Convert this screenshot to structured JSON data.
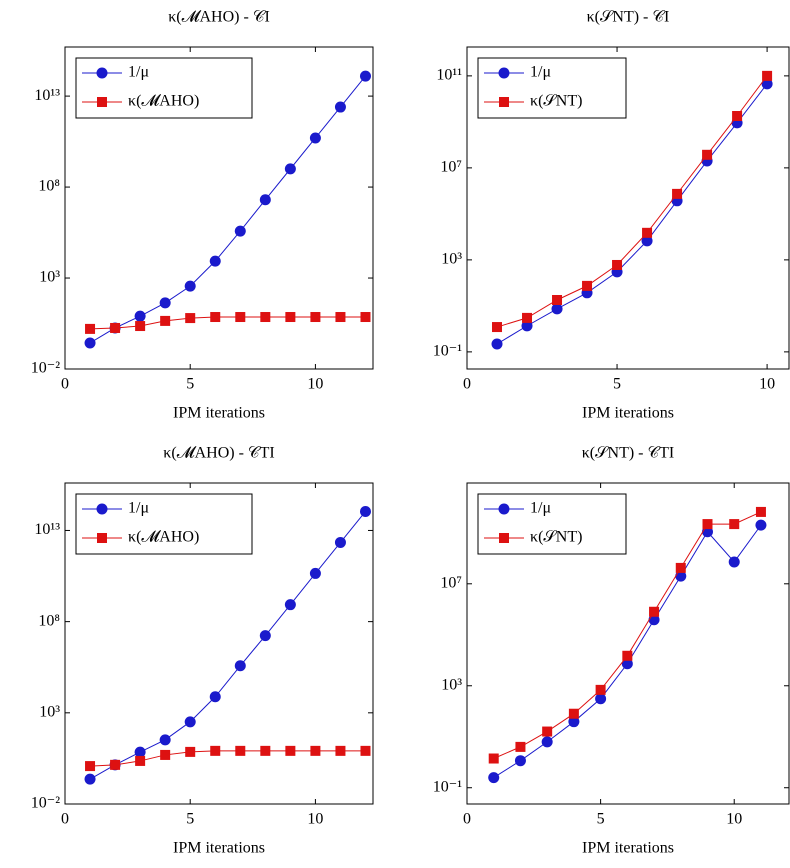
{
  "chart_data": [
    {
      "type": "line",
      "title": "κ(𝓜AHO) - 𝒞I",
      "xlabel": "IPM iterations",
      "log_y": true,
      "legend": "upper left",
      "xlim": [
        0,
        12.3
      ],
      "xticks": [
        0,
        5,
        10
      ],
      "ylim": [
        0.01,
        5000000000000000.0
      ],
      "yticks": [
        {
          "value": 0.01,
          "label": "10⁻²"
        },
        {
          "value": 1000,
          "label": "10³"
        },
        {
          "value": 100000000,
          "label": "10⁸"
        },
        {
          "value": 10000000000000.0,
          "label": "10¹³"
        }
      ],
      "x": [
        1,
        2,
        3,
        4,
        5,
        6,
        7,
        8,
        9,
        10,
        11,
        12
      ],
      "series": [
        {
          "name": "1/μ",
          "color": "#1a1acc",
          "marker": "circle",
          "values": [
            0.27,
            1.8,
            8,
            43,
            360,
            8500,
            380000,
            20000000,
            1000000000,
            50000000000,
            2500000000000,
            126000000000000
          ]
        },
        {
          "name": "κ(𝓜AHO)",
          "color": "#dd1111",
          "marker": "square",
          "values": [
            1.6,
            1.8,
            2.3,
            4.4,
            6.3,
            7.2,
            7.2,
            7.2,
            7.2,
            7.2,
            7.2,
            7.2
          ]
        }
      ]
    },
    {
      "type": "line",
      "title": "κ(𝒮NT) - 𝒞I",
      "xlabel": "IPM iterations",
      "log_y": true,
      "legend": "upper left",
      "xlim": [
        0,
        10.73
      ],
      "xticks": [
        0,
        5,
        10
      ],
      "ylim": [
        0.018,
        1800000000000.0
      ],
      "yticks": [
        {
          "value": 0.1,
          "label": "10⁻¹"
        },
        {
          "value": 1000,
          "label": "10³"
        },
        {
          "value": 10000000,
          "label": "10⁷"
        },
        {
          "value": 100000000000,
          "label": "10¹¹"
        }
      ],
      "x": [
        1,
        2,
        3,
        4,
        5,
        6,
        7,
        8,
        9,
        10
      ],
      "series": [
        {
          "name": "1/μ",
          "color": "#1a1acc",
          "marker": "circle",
          "values": [
            0.22,
            1.35,
            7.4,
            37,
            300,
            6700,
            370000,
            20000000,
            900000000,
            45000000000
          ]
        },
        {
          "name": "κ(𝒮NT)",
          "color": "#dd1111",
          "marker": "square",
          "values": [
            1.2,
            3,
            18,
            74,
            600,
            15000,
            740000,
            37000000,
            1800000000,
            100000000000
          ]
        }
      ]
    },
    {
      "type": "line",
      "title": "κ(𝓜AHO) - 𝒞TI",
      "xlabel": "IPM iterations",
      "log_y": true,
      "legend": "upper left",
      "xlim": [
        0,
        12.3
      ],
      "xticks": [
        0,
        5,
        10
      ],
      "ylim": [
        0.01,
        4000000000000000.0
      ],
      "yticks": [
        {
          "value": 0.01,
          "label": "10⁻²"
        },
        {
          "value": 1000,
          "label": "10³"
        },
        {
          "value": 100000000,
          "label": "10⁸"
        },
        {
          "value": 10000000000000.0,
          "label": "10¹³"
        }
      ],
      "x": [
        1,
        2,
        3,
        4,
        5,
        6,
        7,
        8,
        9,
        10,
        11,
        12
      ],
      "series": [
        {
          "name": "1/μ",
          "color": "#1a1acc",
          "marker": "circle",
          "values": [
            0.23,
            1.4,
            7,
            33,
            320,
            7600,
            380000,
            17000000,
            850000000,
            44000000000,
            2200000000000,
            110000000000000
          ]
        },
        {
          "name": "κ(𝓜AHO)",
          "color": "#dd1111",
          "marker": "square",
          "values": [
            1.2,
            1.4,
            2.3,
            4.9,
            7.2,
            8.2,
            8.2,
            8.2,
            8.2,
            8.2,
            8.2,
            8.2
          ]
        }
      ]
    },
    {
      "type": "line",
      "title": "κ(𝒮NT) - 𝒞TI",
      "xlabel": "IPM iterations",
      "log_y": true,
      "legend": "upper left",
      "xlim": [
        0,
        12.05
      ],
      "xticks": [
        0,
        5,
        10
      ],
      "ylim": [
        0.023,
        90000000000.0
      ],
      "yticks": [
        {
          "value": 0.1,
          "label": "10⁻¹"
        },
        {
          "value": 1000,
          "label": "10³"
        },
        {
          "value": 10000000,
          "label": "10⁷"
        }
      ],
      "x": [
        1,
        2,
        3,
        4,
        5,
        6,
        7,
        8,
        9,
        10,
        11
      ],
      "series": [
        {
          "name": "1/μ",
          "color": "#1a1acc",
          "marker": "circle",
          "values": [
            0.25,
            1.15,
            6.3,
            39,
            310,
            7300,
            390000,
            20000000,
            1100000000,
            72000000,
            2000000000
          ]
        },
        {
          "name": "κ(𝒮NT)",
          "color": "#dd1111",
          "marker": "square",
          "values": [
            1.4,
            4,
            16,
            80,
            690,
            15000,
            800000,
            42000000,
            2200000000,
            2200000000,
            6600000000
          ]
        }
      ]
    }
  ]
}
